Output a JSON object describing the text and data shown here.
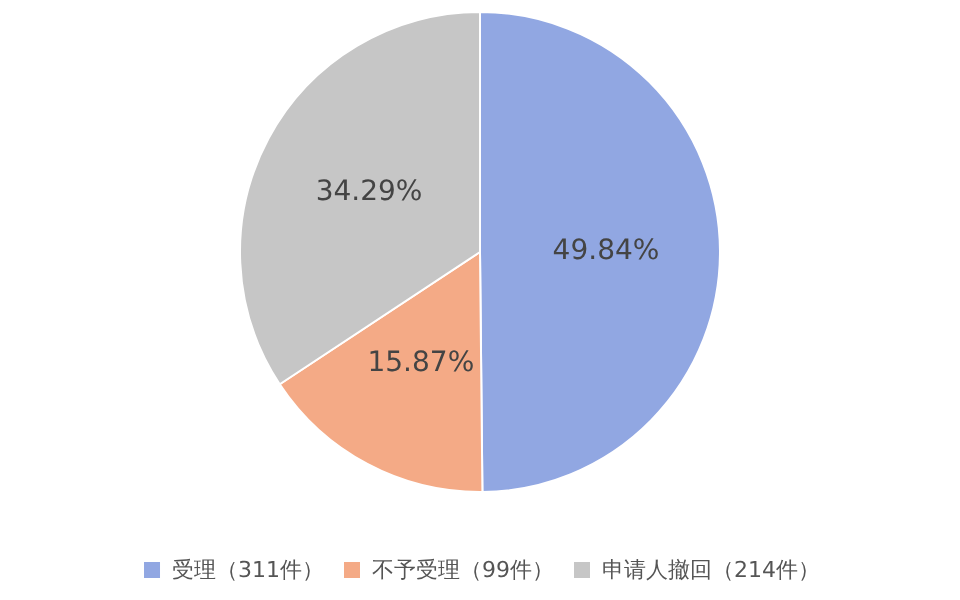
{
  "chart_data": {
    "type": "pie",
    "categories": [
      "受理（311件）",
      "不予受理（99件）",
      "申请人撤回（214件）"
    ],
    "values": [
      49.84,
      15.87,
      34.29
    ],
    "colors": [
      "#91a7e2",
      "#f4aa86",
      "#c6c6c6"
    ],
    "value_labels": [
      "49.84%",
      "15.87%",
      "34.29%"
    ],
    "legend": "bottom"
  }
}
